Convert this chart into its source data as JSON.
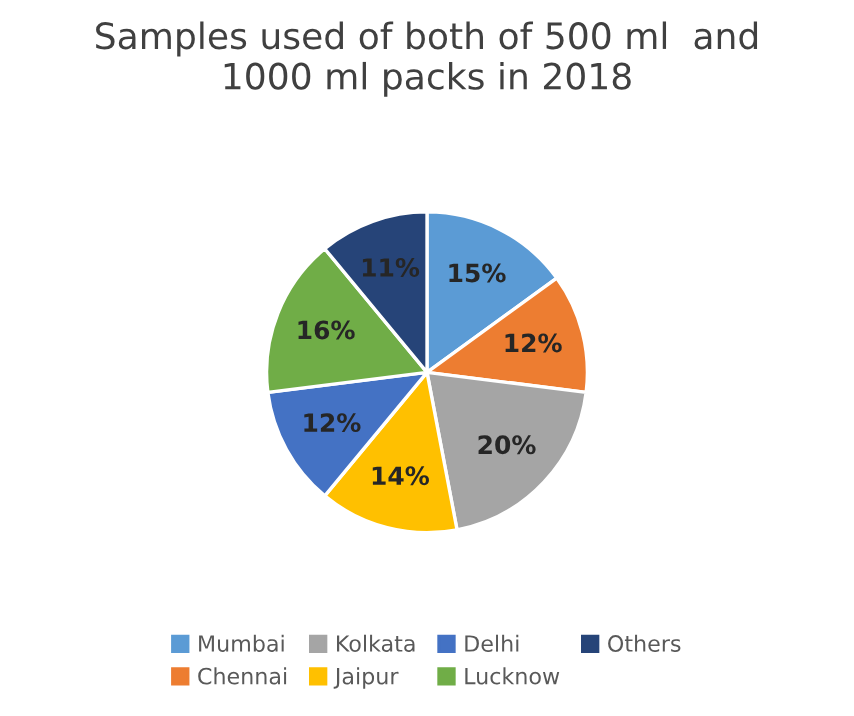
{
  "chart_data": {
    "type": "pie",
    "title": "Samples used of both of 500 ml  and\n1000 ml packs in 2018",
    "categories": [
      "Mumbai",
      "Chennai",
      "Kolkata",
      "Jaipur",
      "Delhi",
      "Lucknow",
      "Others"
    ],
    "values": [
      15,
      12,
      20,
      14,
      12,
      16,
      11
    ],
    "value_labels": [
      "15%",
      "12%",
      "20%",
      "14%",
      "12%",
      "16%",
      "11%"
    ],
    "colors": [
      "#5b9bd5",
      "#ed7d31",
      "#a5a5a5",
      "#ffc000",
      "#4472c4",
      "#70ad47",
      "#264478"
    ],
    "legend": "bottom"
  }
}
